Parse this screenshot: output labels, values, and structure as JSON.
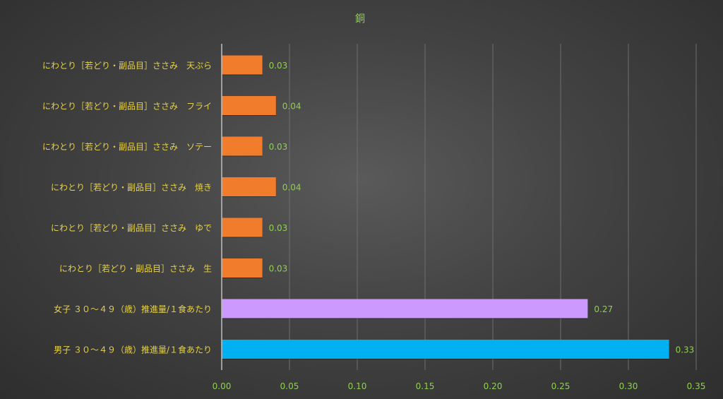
{
  "chart_data": {
    "type": "bar",
    "orientation": "horizontal",
    "title": "銅",
    "xlabel": "",
    "ylabel": "",
    "xlim": [
      0,
      0.35
    ],
    "x_ticks": [
      0.0,
      0.05,
      0.1,
      0.15,
      0.2,
      0.25,
      0.3,
      0.35
    ],
    "x_tick_labels": [
      "0.00",
      "0.05",
      "0.10",
      "0.15",
      "0.20",
      "0.25",
      "0.30",
      "0.35"
    ],
    "grid": true,
    "legend": "none",
    "categories": [
      "にわとり［若どり・副品目］ささみ　天ぷら",
      "にわとり［若どり・副品目］ささみ　フライ",
      "にわとり［若どり・副品目］ささみ　ソテー",
      "にわとり［若どり・副品目］ささみ　焼き",
      "にわとり［若どり・副品目］ささみ　ゆで",
      "にわとり［若どり・副品目］ささみ　生",
      "女子 ３０～４９（歳）推進量/１食あたり",
      "男子 ３０～４９（歳）推進量/１食あたり"
    ],
    "values": [
      0.03,
      0.04,
      0.03,
      0.04,
      0.03,
      0.03,
      0.27,
      0.33
    ],
    "value_labels": [
      "0.03",
      "0.04",
      "0.03",
      "0.04",
      "0.03",
      "0.03",
      "0.27",
      "0.33"
    ],
    "bar_colors": [
      "#f07c2c",
      "#f07c2c",
      "#f07c2c",
      "#f07c2c",
      "#f07c2c",
      "#f07c2c",
      "#cc99ff",
      "#00b0f0"
    ]
  },
  "colors": {
    "title": "#8fd14f",
    "tick_label": "#8fd14f",
    "value_label": "#8fd14f",
    "category_label": "#e6d24a",
    "gridline": "#6e6e6e",
    "axis_line": "#bfbfbf"
  }
}
